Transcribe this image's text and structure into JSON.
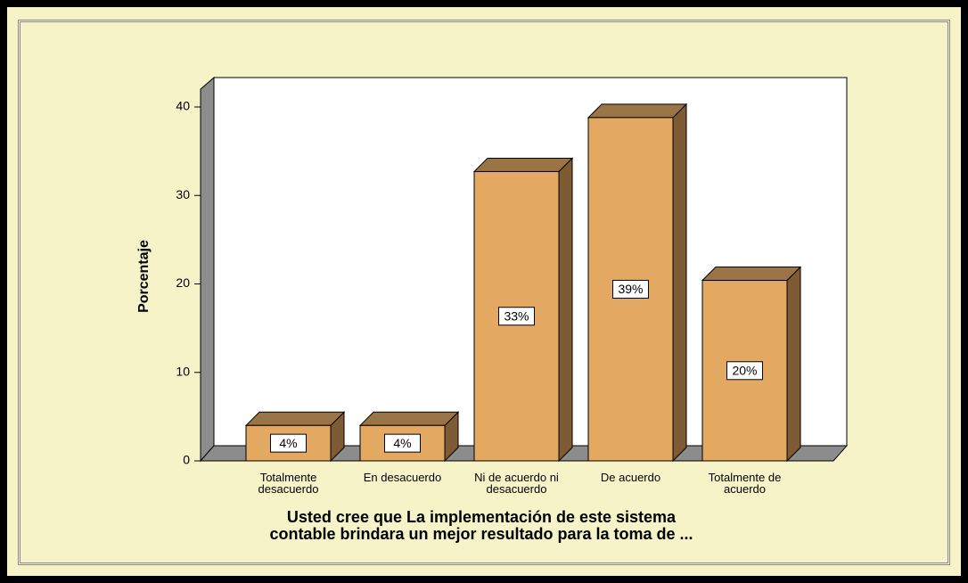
{
  "chart_data": {
    "type": "bar3d",
    "y_label": "Porcentaje",
    "x_label": [
      "Usted cree que La  implementación de este sistema",
      "contable brindara un mejor  resultado para la toma de ..."
    ],
    "categories": [
      "Totalmente desacuerdo",
      "En desacuerdo",
      "Ni de acuerdo ni desacuerdo",
      "De acuerdo",
      "Totalmente de acuerdo"
    ],
    "values": [
      4,
      4,
      32.7,
      38.8,
      20.4
    ],
    "value_labels": [
      "4%",
      "4%",
      "33%",
      "39%",
      "20%"
    ],
    "color": "#e3a862",
    "ylim": [
      0,
      40
    ],
    "yticks": [
      0,
      10,
      20,
      30,
      40
    ]
  }
}
